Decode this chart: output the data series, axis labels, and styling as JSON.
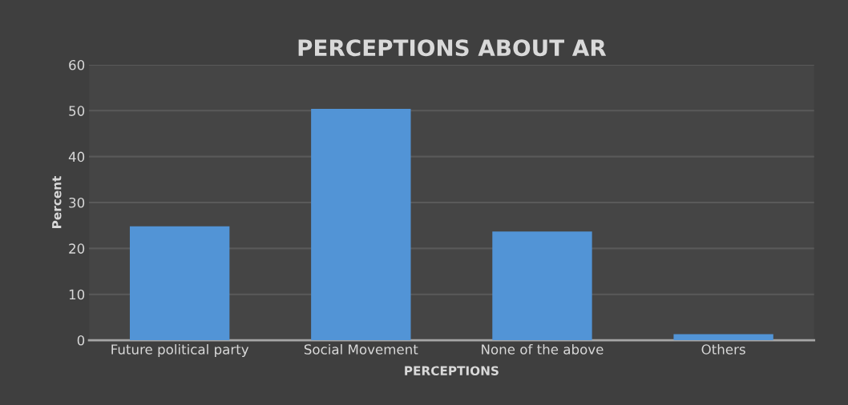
{
  "chart_data": {
    "type": "bar",
    "title": "PERCEPTIONS ABOUT AR",
    "xlabel": "PERCEPTIONS",
    "ylabel": "Percent",
    "categories": [
      "Future political party",
      "Social Movement",
      "None of the above",
      "Others"
    ],
    "values": [
      24.8,
      50.4,
      23.7,
      1.3
    ],
    "color": "#5294d6",
    "ylim": [
      0,
      60
    ],
    "yticks": [
      0,
      10,
      20,
      30,
      40,
      50,
      60
    ],
    "grid": "y"
  }
}
